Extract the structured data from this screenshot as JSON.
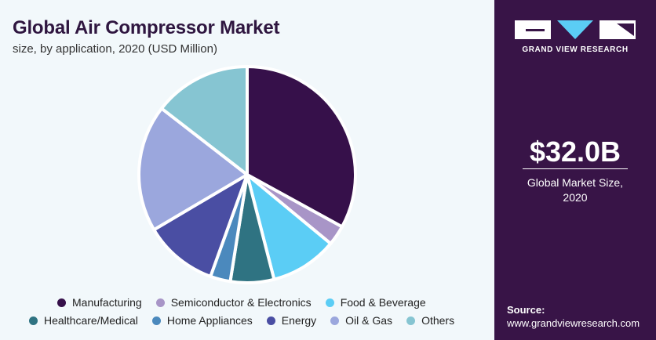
{
  "title": "Global Air Compressor Market",
  "subtitle": "size, by application, 2020 (USD Million)",
  "chart_data": {
    "type": "pie",
    "title": "Global Air Compressor Market",
    "subtitle": "size, by application, 2020 (USD Million)",
    "start_angle_deg": 0,
    "direction": "clockwise",
    "legend_position": "bottom",
    "slices": [
      {
        "name": "Manufacturing",
        "value": 33.0,
        "color": "#36104a"
      },
      {
        "name": "Semiconductor & Electronics",
        "value": 3.0,
        "color": "#a895c7"
      },
      {
        "name": "Food & Beverage",
        "value": 10.0,
        "color": "#5bcdf5"
      },
      {
        "name": "Healthcare/Medical",
        "value": 6.5,
        "color": "#2f7382"
      },
      {
        "name": "Home Appliances",
        "value": 3.0,
        "color": "#4b89bd"
      },
      {
        "name": "Energy",
        "value": 11.0,
        "color": "#4a4ea3"
      },
      {
        "name": "Oil & Gas",
        "value": 19.0,
        "color": "#9ba7dd"
      },
      {
        "name": "Others",
        "value": 14.5,
        "color": "#86c5d2"
      }
    ]
  },
  "sidebar": {
    "brand": "GRAND VIEW RESEARCH",
    "market_size": "$32.0B",
    "market_caption_line1": "Global Market Size,",
    "market_caption_line2": "2020",
    "source_label": "Source:",
    "source_url": "www.grandviewresearch.com"
  },
  "colors": {
    "panel_bg": "#f2f8fb",
    "sidebar_bg": "#381447",
    "title": "#2f1640"
  }
}
